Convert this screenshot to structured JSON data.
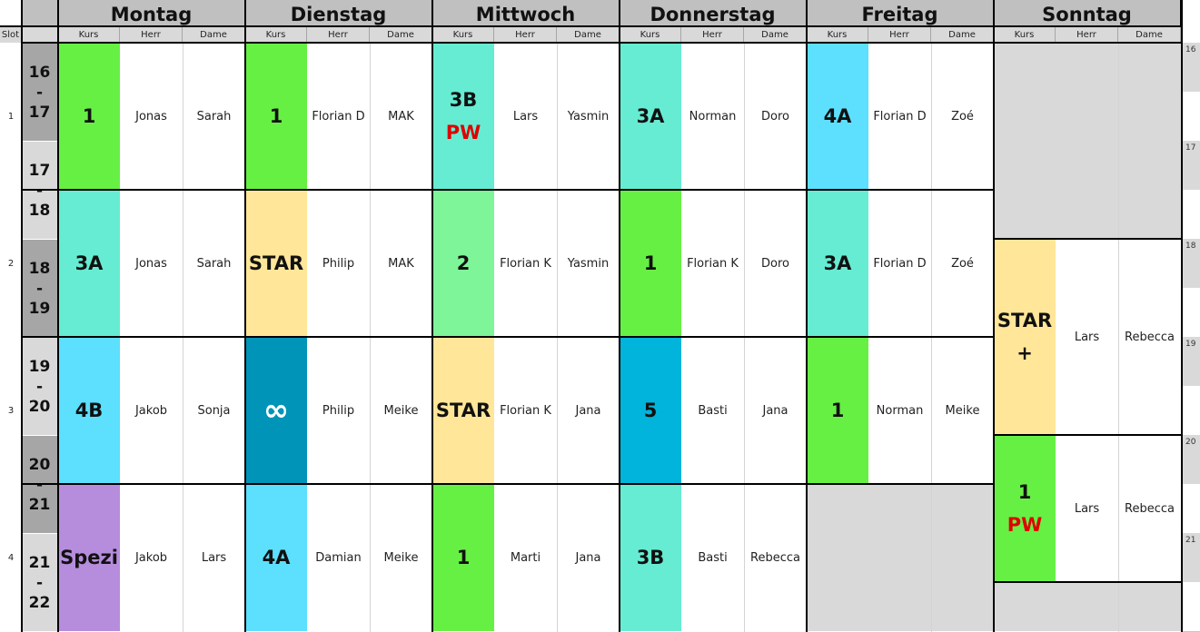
{
  "columns": {
    "kurs": "Kurs",
    "herr": "Herr",
    "dame": "Dame",
    "slot": "Slot"
  },
  "slots": [
    "1",
    "2",
    "3",
    "4"
  ],
  "times": [
    [
      "16",
      "-",
      "17"
    ],
    [
      "17",
      "-",
      "18"
    ],
    [
      "18",
      "-",
      "19"
    ],
    [
      "19",
      "-",
      "20"
    ],
    [
      "20",
      "-",
      "21"
    ],
    [
      "21",
      "-",
      "22"
    ]
  ],
  "side_hours": [
    "16",
    "17",
    "18",
    "19",
    "20",
    "21"
  ],
  "colors": {
    "green": "#66f044",
    "teal": "#66ecd2",
    "blue": "#5ddffe",
    "yellow": "#ffe699",
    "mint": "#7ef598",
    "darkteal": "#0094b8",
    "cyan": "#00b4dc",
    "purple": "#b68ddc",
    "gray": "#d9d9d9"
  },
  "days": [
    {
      "name": "Montag",
      "lessons": [
        {
          "kurs": "1",
          "herr": "Jonas",
          "dame": "Sarah",
          "color": "#66f044"
        },
        {
          "kurs": "3A",
          "herr": "Jonas",
          "dame": "Sarah",
          "color": "#66ecd2"
        },
        {
          "kurs": "4B",
          "herr": "Jakob",
          "dame": "Sonja",
          "color": "#5ddffe"
        },
        {
          "kurs": "Spezi",
          "herr": "Jakob",
          "dame": "Lars",
          "color": "#b68ddc"
        }
      ]
    },
    {
      "name": "Dienstag",
      "lessons": [
        {
          "kurs": "1",
          "herr": "Florian D",
          "dame": "MAK",
          "color": "#66f044"
        },
        {
          "kurs": "STAR",
          "herr": "Philip",
          "dame": "MAK",
          "color": "#ffe699"
        },
        {
          "kurs": "∞",
          "herr": "Philip",
          "dame": "Meike",
          "color": "#0094b8",
          "light": true
        },
        {
          "kurs": "4A",
          "herr": "Damian",
          "dame": "Meike",
          "color": "#5ddffe"
        }
      ]
    },
    {
      "name": "Mittwoch",
      "lessons": [
        {
          "kurs": "3B",
          "kurs_note": "PW",
          "herr": "Lars",
          "dame": "Yasmin",
          "color": "#66ecd2"
        },
        {
          "kurs": "2",
          "herr": "Florian K",
          "dame": "Yasmin",
          "color": "#7ef598"
        },
        {
          "kurs": "STAR",
          "herr": "Florian K",
          "dame": "Jana",
          "color": "#ffe699"
        },
        {
          "kurs": "1",
          "herr": "Marti",
          "dame": "Jana",
          "color": "#66f044"
        }
      ]
    },
    {
      "name": "Donnerstag",
      "lessons": [
        {
          "kurs": "3A",
          "herr": "Norman",
          "dame": "Doro",
          "color": "#66ecd2"
        },
        {
          "kurs": "1",
          "herr": "Florian K",
          "dame": "Doro",
          "color": "#66f044"
        },
        {
          "kurs": "5",
          "herr": "Basti",
          "dame": "Jana",
          "color": "#00b4dc"
        },
        {
          "kurs": "3B",
          "herr": "Basti",
          "dame": "Rebecca",
          "color": "#66ecd2"
        }
      ]
    },
    {
      "name": "Freitag",
      "lessons": [
        {
          "kurs": "4A",
          "herr": "Florian D",
          "dame": "Zoé",
          "color": "#5ddffe"
        },
        {
          "kurs": "3A",
          "herr": "Florian D",
          "dame": "Zoé",
          "color": "#66ecd2"
        },
        {
          "kurs": "1",
          "herr": "Norman",
          "dame": "Meike",
          "color": "#66f044"
        }
      ]
    },
    {
      "name": "Sonntag",
      "lessons": [
        {
          "kurs": "STAR",
          "kurs_note": "+",
          "herr": "Lars",
          "dame": "Rebecca",
          "color": "#ffe699",
          "note_black": true
        },
        {
          "kurs": "1",
          "kurs_note": "PW",
          "herr": "Lars",
          "dame": "Rebecca",
          "color": "#66f044"
        }
      ]
    }
  ]
}
